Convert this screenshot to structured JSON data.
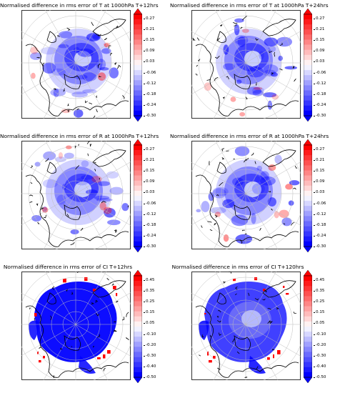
{
  "colors": {
    "low": "#0000ff",
    "mid": "#ffffff",
    "high": "#ff0000",
    "coast": "#000000",
    "grid": "#bdbdbd"
  },
  "panels": [
    {
      "title": "Normalised difference in rms error of T at 1000hPa T+12hrs",
      "colorbar_ticks": [
        "0.27",
        "0.21",
        "0.15",
        "0.09",
        "0.03",
        "-0.06",
        "-0.12",
        "-0.18",
        "-0.24",
        "-0.30"
      ],
      "vmin": -0.3,
      "vmax": 0.3,
      "pattern": "field"
    },
    {
      "title": "Normalised difference in rms error of T at 1000hPa T+24hrs",
      "colorbar_ticks": [
        "0.27",
        "0.21",
        "0.15",
        "0.09",
        "0.03",
        "-0.06",
        "-0.12",
        "-0.18",
        "-0.24",
        "-0.30"
      ],
      "vmin": -0.3,
      "vmax": 0.3,
      "pattern": "field"
    },
    {
      "title": "Normalised difference in rms error of R at 1000hPa T+12hrs",
      "colorbar_ticks": [
        "0.27",
        "0.21",
        "0.15",
        "0.09",
        "0.03",
        "-0.06",
        "-0.12",
        "-0.18",
        "-0.24",
        "-0.30"
      ],
      "vmin": -0.3,
      "vmax": 0.3,
      "pattern": "field"
    },
    {
      "title": "Normalised difference in rms error of R at 1000hPa T+24hrs",
      "colorbar_ticks": [
        "0.27",
        "0.21",
        "0.15",
        "0.09",
        "0.03",
        "-0.06",
        "-0.12",
        "-0.18",
        "-0.24",
        "-0.30"
      ],
      "vmin": -0.3,
      "vmax": 0.3,
      "pattern": "field"
    },
    {
      "title": "Normalised difference in rms error of CI T+12hrs",
      "colorbar_ticks": [
        "0.45",
        "0.35",
        "0.25",
        "0.15",
        "0.05",
        "-0.10",
        "-0.20",
        "-0.30",
        "-0.40",
        "-0.50"
      ],
      "vmin": -0.5,
      "vmax": 0.5,
      "pattern": "ice"
    },
    {
      "title": "Normalised difference in rms error of CI T+120hrs",
      "colorbar_ticks": [
        "0.45",
        "0.35",
        "0.25",
        "0.15",
        "0.05",
        "-0.10",
        "-0.20",
        "-0.30",
        "-0.40",
        "-0.50"
      ],
      "vmin": -0.5,
      "vmax": 0.5,
      "pattern": "ice"
    }
  ],
  "chart_data": [
    {
      "type": "heatmap",
      "title": "Normalised difference in rms error of T at 1000hPa T+12hrs",
      "projection": "north polar stereographic",
      "colorbar_range": [
        -0.3,
        0.3
      ],
      "colorbar_ticks": [
        0.27,
        0.21,
        0.15,
        0.09,
        0.03,
        -0.06,
        -0.12,
        -0.18,
        -0.24,
        -0.3
      ]
    },
    {
      "type": "heatmap",
      "title": "Normalised difference in rms error of T at 1000hPa T+24hrs",
      "projection": "north polar stereographic",
      "colorbar_range": [
        -0.3,
        0.3
      ],
      "colorbar_ticks": [
        0.27,
        0.21,
        0.15,
        0.09,
        0.03,
        -0.06,
        -0.12,
        -0.18,
        -0.24,
        -0.3
      ]
    },
    {
      "type": "heatmap",
      "title": "Normalised difference in rms error of R at 1000hPa T+12hrs",
      "projection": "north polar stereographic",
      "colorbar_range": [
        -0.3,
        0.3
      ],
      "colorbar_ticks": [
        0.27,
        0.21,
        0.15,
        0.09,
        0.03,
        -0.06,
        -0.12,
        -0.18,
        -0.24,
        -0.3
      ]
    },
    {
      "type": "heatmap",
      "title": "Normalised difference in rms error of R at 1000hPa T+24hrs",
      "projection": "north polar stereographic",
      "colorbar_range": [
        -0.3,
        0.3
      ],
      "colorbar_ticks": [
        0.27,
        0.21,
        0.15,
        0.09,
        0.03,
        -0.06,
        -0.12,
        -0.18,
        -0.24,
        -0.3
      ]
    },
    {
      "type": "heatmap",
      "title": "Normalised difference in rms error of CI T+12hrs",
      "projection": "north polar stereographic",
      "colorbar_range": [
        -0.5,
        0.5
      ],
      "colorbar_ticks": [
        0.45,
        0.35,
        0.25,
        0.15,
        0.05,
        -0.1,
        -0.2,
        -0.3,
        -0.4,
        -0.5
      ]
    },
    {
      "type": "heatmap",
      "title": "Normalised difference in rms error of CI T+120hrs",
      "projection": "north polar stereographic",
      "colorbar_range": [
        -0.5,
        0.5
      ],
      "colorbar_ticks": [
        0.45,
        0.35,
        0.25,
        0.15,
        0.05,
        -0.1,
        -0.2,
        -0.3,
        -0.4,
        -0.5
      ]
    }
  ]
}
